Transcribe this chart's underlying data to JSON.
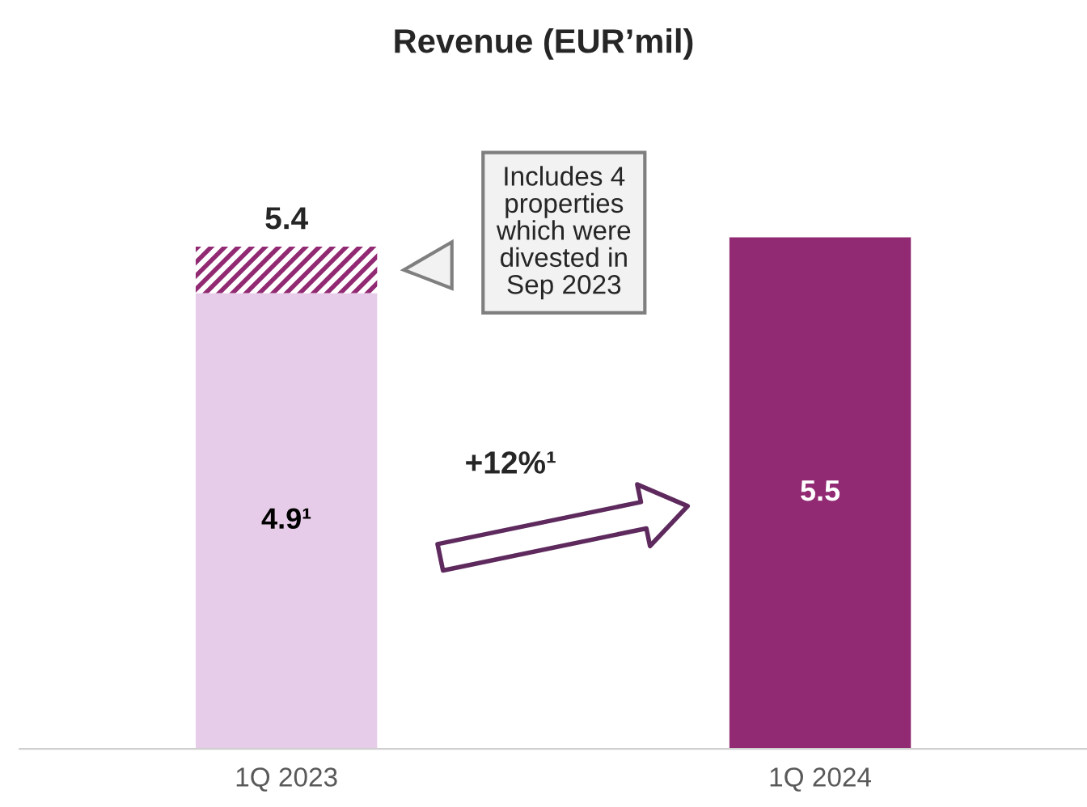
{
  "chart_data": {
    "type": "bar",
    "title": "Revenue (EUR’mil)",
    "categories": [
      "1Q 2023",
      "1Q 2024"
    ],
    "stacked": true,
    "series": [
      {
        "colors": [
          "#e6cce8",
          "#922a73"
        ],
        "values": [
          4.9,
          5.5
        ],
        "value_labels": [
          "4.9¹",
          "5.5"
        ]
      },
      {
        "color": "#922a73",
        "values": [
          0.5,
          null
        ]
      }
    ],
    "totals": [
      "5.4",
      null
    ],
    "annotations": [
      "Includes 4\nproperties\nwhich were\ndivested in\nSep 2023",
      "+12%¹"
    ]
  }
}
